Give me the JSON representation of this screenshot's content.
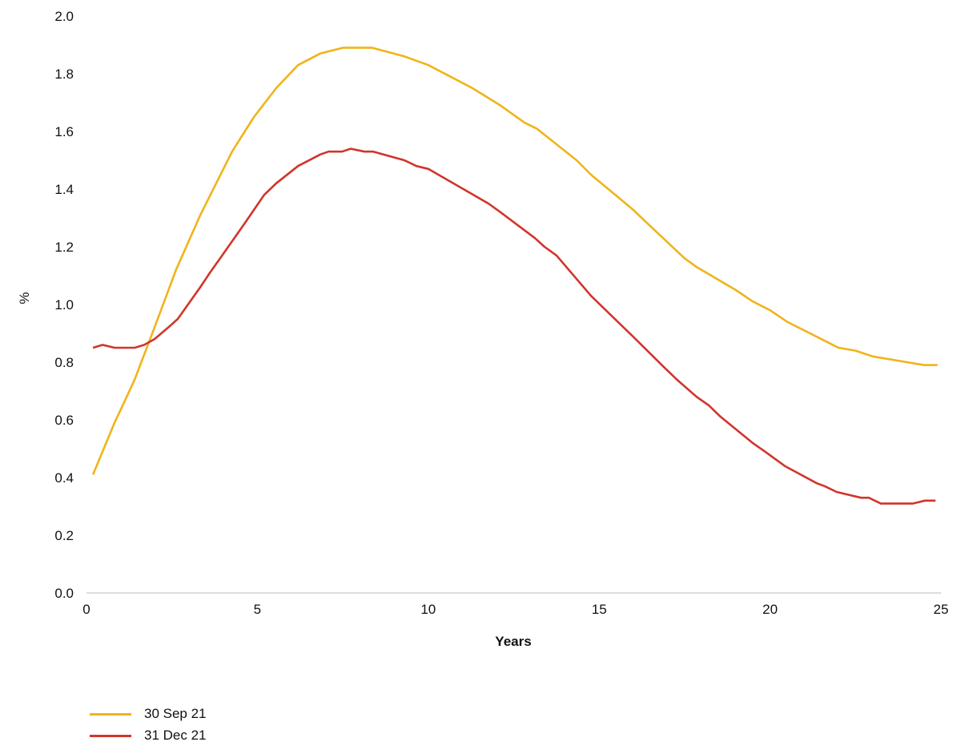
{
  "chart_data": {
    "type": "line",
    "title": "",
    "xlabel": "Years",
    "ylabel": "%",
    "xlim": [
      0,
      25
    ],
    "ylim": [
      0,
      2.0
    ],
    "x_ticks": [
      "0",
      "5",
      "10",
      "15",
      "20",
      "25"
    ],
    "y_ticks": [
      "0.0",
      "0.2",
      "0.4",
      "0.6",
      "0.8",
      "1.0",
      "1.2",
      "1.4",
      "1.6",
      "1.8",
      "2.0"
    ],
    "grid": false,
    "legend_position": "bottom-left",
    "series": [
      {
        "name": "30 Sep 21",
        "color": "#f0b41a",
        "x": [
          0.19,
          0.82,
          1.1,
          1.41,
          1.99,
          2.62,
          3.33,
          4.26,
          4.9,
          5.55,
          6.19,
          6.84,
          7.5,
          8.36,
          9.3,
          10.0,
          11.29,
          12.11,
          12.82,
          13.17,
          14.34,
          14.76,
          15.98,
          16.33,
          17.5,
          17.85,
          19.0,
          19.5,
          20.0,
          20.5,
          21.0,
          21.5,
          22.0,
          22.5,
          23.0,
          23.5,
          24.0,
          24.5,
          24.9
        ],
        "y": [
          0.41,
          0.59,
          0.66,
          0.74,
          0.92,
          1.12,
          1.31,
          1.53,
          1.65,
          1.75,
          1.83,
          1.87,
          1.89,
          1.89,
          1.86,
          1.83,
          1.75,
          1.69,
          1.63,
          1.61,
          1.5,
          1.45,
          1.33,
          1.29,
          1.16,
          1.13,
          1.05,
          1.01,
          0.98,
          0.94,
          0.91,
          0.88,
          0.85,
          0.84,
          0.82,
          0.81,
          0.8,
          0.79,
          0.79
        ]
      },
      {
        "name": "31 Dec 21",
        "color": "#d0352b",
        "x": [
          0.19,
          0.47,
          0.82,
          1.41,
          1.69,
          1.99,
          2.39,
          2.67,
          3.33,
          3.61,
          3.91,
          4.62,
          5.2,
          5.55,
          6.19,
          6.84,
          7.08,
          7.48,
          7.73,
          8.13,
          8.39,
          9.3,
          9.65,
          10.0,
          11.76,
          12.11,
          13.12,
          13.4,
          13.75,
          14.76,
          15.63,
          15.98,
          16.92,
          17.27,
          17.85,
          18.21,
          18.56,
          19.49,
          19.85,
          20.43,
          21.37,
          21.6,
          21.95,
          22.66,
          22.89,
          23.24,
          24.18,
          24.53,
          24.84
        ],
        "y": [
          0.85,
          0.86,
          0.85,
          0.85,
          0.86,
          0.88,
          0.92,
          0.95,
          1.06,
          1.11,
          1.16,
          1.28,
          1.38,
          1.42,
          1.48,
          1.52,
          1.53,
          1.53,
          1.54,
          1.53,
          1.53,
          1.5,
          1.48,
          1.47,
          1.35,
          1.32,
          1.23,
          1.2,
          1.17,
          1.03,
          0.93,
          0.89,
          0.78,
          0.74,
          0.68,
          0.65,
          0.61,
          0.52,
          0.49,
          0.44,
          0.38,
          0.37,
          0.35,
          0.33,
          0.33,
          0.31,
          0.31,
          0.32,
          0.32
        ]
      }
    ]
  }
}
